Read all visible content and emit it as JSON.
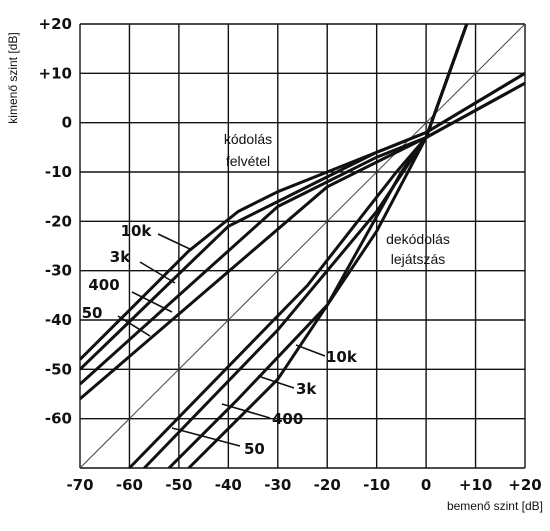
{
  "chart_data": {
    "type": "line",
    "xlabel": "bemenő szint [dB]",
    "ylabel": "kimenő szint [dB]",
    "xlim": [
      -70,
      20
    ],
    "ylim": [
      -70,
      20
    ],
    "grid": true,
    "x_ticks": [
      "-70",
      "-60",
      "-50",
      "-40",
      "-30",
      "-20",
      "-10",
      "0",
      "+10",
      "+20"
    ],
    "y_ticks": [
      "+20",
      "+10",
      "0",
      "-10",
      "-20",
      "-30",
      "-40",
      "-50",
      "-60"
    ],
    "annotations": {
      "encode_top": "kódolás",
      "encode_bottom": "felvétel",
      "decode_top": "dekódolás",
      "decode_bottom": "lejátszás"
    },
    "series": [
      {
        "name": "10k",
        "group": "encode",
        "x": [
          -70,
          -48,
          -38,
          -30,
          -20,
          -10,
          0,
          20
        ],
        "y": [
          -48,
          -26,
          -18,
          -14,
          -10,
          -6,
          -2,
          10
        ]
      },
      {
        "name": "3k",
        "group": "encode",
        "x": [
          -70,
          -40,
          -20,
          -10,
          0,
          20
        ],
        "y": [
          -50,
          -21,
          -11,
          -6,
          -2,
          10
        ]
      },
      {
        "name": "400",
        "group": "encode",
        "x": [
          -70,
          -30,
          -10,
          0,
          20
        ],
        "y": [
          -53,
          -17,
          -7,
          -3,
          8
        ]
      },
      {
        "name": "50",
        "group": "encode",
        "x": [
          -70,
          -20,
          0,
          20
        ],
        "y": [
          -56,
          -13,
          -3,
          8
        ]
      },
      {
        "name": "10k",
        "group": "decode",
        "x": [
          -48,
          -30,
          -20,
          -10,
          0,
          10
        ],
        "y": [
          -70,
          -52,
          -37,
          -22,
          -3,
          25
        ]
      },
      {
        "name": "3k",
        "group": "decode",
        "x": [
          -52,
          -38,
          -20,
          -5,
          0,
          10
        ],
        "y": [
          -70,
          -56,
          -37,
          -10,
          -3,
          25
        ]
      },
      {
        "name": "400",
        "group": "decode",
        "x": [
          -57,
          -30,
          -10,
          0,
          10
        ],
        "y": [
          -70,
          -42,
          -18,
          -3,
          25
        ]
      },
      {
        "name": "50",
        "group": "decode",
        "x": [
          -60,
          -24,
          -6,
          0,
          10
        ],
        "y": [
          -70,
          -33,
          -10,
          -3,
          25
        ]
      }
    ],
    "reference_line": {
      "x": [
        -70,
        20
      ],
      "y": [
        -70,
        20
      ]
    }
  }
}
